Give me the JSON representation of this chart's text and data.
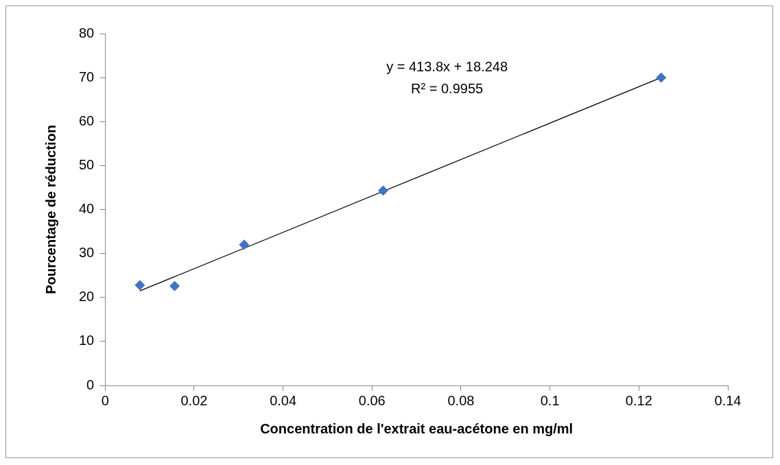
{
  "chart_data": {
    "type": "scatter",
    "xlabel": "Concentration de l'extrait eau-acétone en mg/ml",
    "ylabel": "Pourcentage de réduction",
    "x": [
      0.0078125,
      0.015625,
      0.03125,
      0.0625,
      0.125
    ],
    "series": [
      {
        "type": "scatter",
        "color": "#4472c4",
        "marker": "diamond",
        "values": [
          22.8,
          22.6,
          32,
          44.3,
          70
        ]
      },
      {
        "type": "line",
        "color": "#000000",
        "marker": "none",
        "line_style": "solid",
        "x": [
          0.0078125,
          0.125
        ],
        "values": [
          21.5,
          70
        ]
      }
    ],
    "annotations": [
      "y = 413.8x + 18.248",
      "R² = 0.9955"
    ],
    "xlim": [
      0,
      0.14
    ],
    "xticks": [
      0,
      0.02,
      0.04,
      0.06,
      0.08,
      0.1,
      0.12,
      0.14
    ],
    "ylim": [
      0,
      80
    ],
    "yticks": [
      0,
      10,
      20,
      30,
      40,
      50,
      60,
      70,
      80
    ],
    "legend": false
  }
}
